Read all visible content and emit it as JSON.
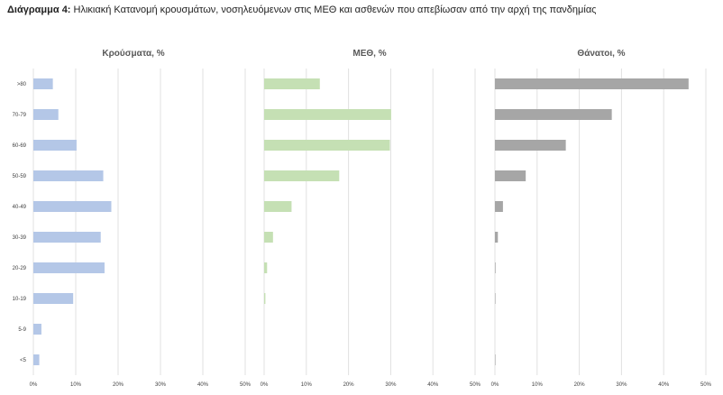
{
  "header": {
    "label": "Διάγραμμα 4:",
    "text": "Ηλικιακή Κατανομή κρουσμάτων, νοσηλευόμενων στις ΜΕΘ και ασθενών που απεβίωσαν από την αρχή της πανδημίας"
  },
  "chart_data": [
    {
      "type": "bar",
      "orientation": "horizontal",
      "title": "Κρούσματα, %",
      "categories": [
        ">80",
        "70-79",
        "60-69",
        "50-59",
        "40-49",
        "30-39",
        "20-29",
        "10-19",
        "5-9",
        "<5"
      ],
      "values": [
        4.6,
        5.9,
        10.2,
        16.5,
        18.4,
        15.9,
        16.8,
        9.4,
        1.9,
        1.4
      ],
      "xlim": [
        0,
        50
      ],
      "ticks": [
        "0%",
        "10%",
        "20%",
        "30%",
        "40%",
        "50%"
      ],
      "color": "#b4c7e7",
      "grid": true
    },
    {
      "type": "bar",
      "orientation": "horizontal",
      "title": "ΜΕΘ, %",
      "categories": [
        ">80",
        "70-79",
        "60-69",
        "50-59",
        "40-49",
        "30-39",
        "20-29",
        "10-19",
        "5-9",
        "<5"
      ],
      "values": [
        13.2,
        30.1,
        29.8,
        17.8,
        6.5,
        2.1,
        0.7,
        0.3,
        0.0,
        0.0
      ],
      "xlim": [
        0,
        50
      ],
      "ticks": [
        "0%",
        "10%",
        "20%",
        "30%",
        "40%",
        "50%"
      ],
      "color": "#c5e0b4",
      "grid": true
    },
    {
      "type": "bar",
      "orientation": "horizontal",
      "title": "Θάνατοι, %",
      "categories": [
        ">80",
        "70-79",
        "60-69",
        "50-59",
        "40-49",
        "30-39",
        "20-29",
        "10-19",
        "5-9",
        "<5"
      ],
      "values": [
        45.9,
        27.7,
        16.8,
        7.3,
        1.9,
        0.7,
        0.15,
        0.1,
        0.0,
        0.05
      ],
      "xlim": [
        0,
        50
      ],
      "ticks": [
        "0%",
        "10%",
        "20%",
        "30%",
        "40%",
        "50%"
      ],
      "color": "#a6a6a6",
      "grid": true
    }
  ]
}
